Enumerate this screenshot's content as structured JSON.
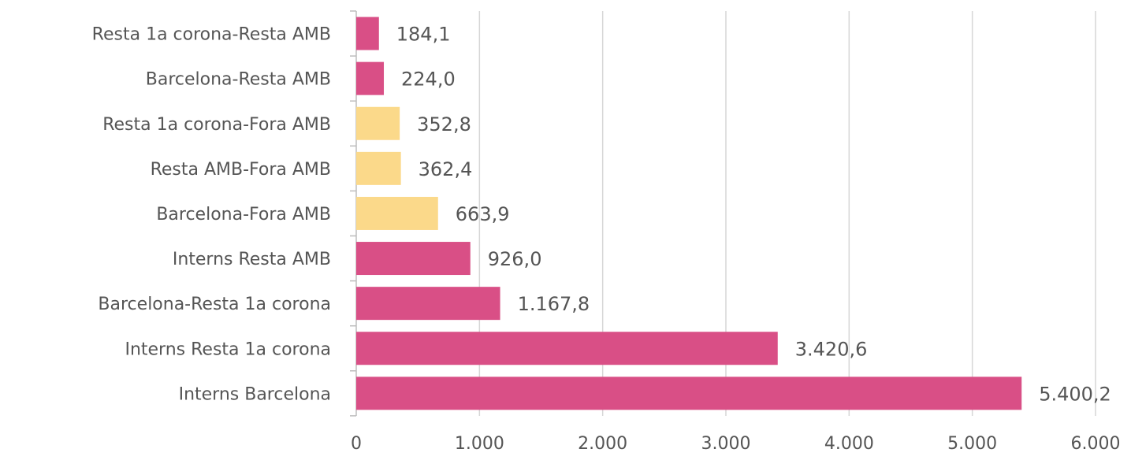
{
  "chart_data": {
    "type": "bar",
    "orientation": "horizontal",
    "categories": [
      "Resta 1a corona-Resta AMB",
      "Barcelona-Resta AMB",
      "Resta 1a corona-Fora AMB",
      "Resta AMB-Fora AMB",
      "Barcelona-Fora AMB",
      "Interns Resta AMB",
      "Barcelona-Resta 1a corona",
      "Interns Resta 1a corona",
      "Interns Barcelona"
    ],
    "values": [
      184.1,
      224.0,
      352.8,
      362.4,
      663.9,
      926.0,
      1167.8,
      3420.6,
      5400.2
    ],
    "value_labels": [
      "184,1",
      "224,0",
      "352,8",
      "362,4",
      "663,9",
      "926,0",
      "1.167,8",
      "3.420,6",
      "5.400,2"
    ],
    "bar_colors": [
      "#d94f86",
      "#d94f86",
      "#fbd98a",
      "#fbd98a",
      "#fbd98a",
      "#d94f86",
      "#d94f86",
      "#d94f86",
      "#d94f86"
    ],
    "xlim": [
      0,
      6000
    ],
    "x_ticks": [
      0,
      1000,
      2000,
      3000,
      4000,
      5000,
      6000
    ],
    "x_tick_labels": [
      "0",
      "1.000",
      "2.000",
      "3.000",
      "4.000",
      "5.000",
      "6.000"
    ],
    "grid": "vertical",
    "title": "",
    "xlabel": "",
    "ylabel": "",
    "colors": {
      "magenta": "#d94f86",
      "yellow": "#fbd98a",
      "grid": "#d6d6d6",
      "text": "#555555"
    }
  }
}
